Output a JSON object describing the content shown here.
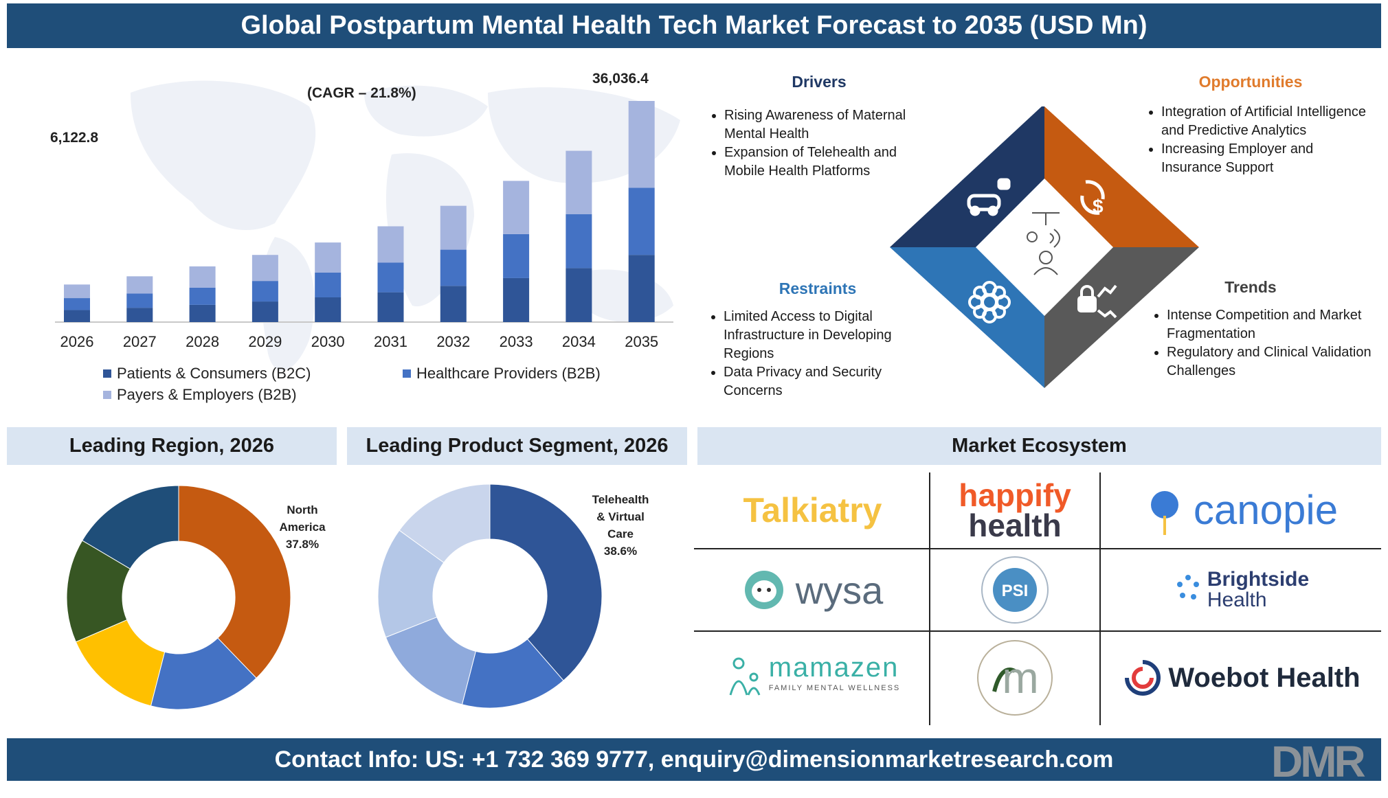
{
  "header": {
    "title": "Global Postpartum Mental Health Tech Market Forecast to 2035 (USD Mn)"
  },
  "footer": {
    "contact": "Contact Info: US: +1 732 369 9777, enquiry@dimensionmarketresearch.com",
    "logo_text": "DMR"
  },
  "chart_data": [
    {
      "type": "bar",
      "stacked": true,
      "categories": [
        "2026",
        "2027",
        "2028",
        "2029",
        "2030",
        "2031",
        "2032",
        "2033",
        "2034",
        "2035"
      ],
      "series": [
        {
          "name": "Patients & Consumers (B2C)",
          "color": "#2f5597",
          "values": [
            1955,
            2335,
            2810,
            3350,
            4030,
            4855,
            5900,
            7170,
            8800,
            10950
          ]
        },
        {
          "name": "Healthcare Providers (B2B)",
          "color": "#4472c4",
          "values": [
            1955,
            2335,
            2810,
            3350,
            4030,
            4855,
            5900,
            7170,
            8800,
            10950
          ]
        },
        {
          "name": "Payers & Employers (B2B)",
          "color": "#a5b4de",
          "values": [
            2213,
            2791,
            3458,
            4244,
            4910,
            5900,
            7150,
            8673,
            10315,
            14136
          ]
        }
      ],
      "annotations": {
        "first_total": "6,122.8",
        "last_total": "36,036.4",
        "cagr": "(CAGR – 21.8%)"
      },
      "grid": false,
      "legend_position": "bottom"
    },
    {
      "type": "pie",
      "variant": "donut",
      "title": "Leading Region, 2026",
      "slices": [
        {
          "label": "North America",
          "value": 37.8,
          "color": "#c55a11"
        },
        {
          "label": "",
          "value": 16.2,
          "color": "#4472c4"
        },
        {
          "label": "",
          "value": 14.5,
          "color": "#ffc000"
        },
        {
          "label": "",
          "value": 15.0,
          "color": "#375623"
        },
        {
          "label": "",
          "value": 16.5,
          "color": "#1f4e79"
        }
      ],
      "callout": {
        "line1": "North",
        "line2": "America",
        "value": "37.8%"
      }
    },
    {
      "type": "pie",
      "variant": "donut",
      "title": "Leading Product Segment, 2026",
      "slices": [
        {
          "label": "Telehealth & Virtual Care",
          "value": 38.6,
          "color": "#2f5597"
        },
        {
          "label": "",
          "value": 15.4,
          "color": "#4472c4"
        },
        {
          "label": "",
          "value": 15.0,
          "color": "#8faadc"
        },
        {
          "label": "",
          "value": 16.0,
          "color": "#b4c7e7"
        },
        {
          "label": "",
          "value": 15.0,
          "color": "#c9d5ec"
        }
      ],
      "callout": {
        "line1": "Telehealth",
        "line2": "& Virtual",
        "line3": "Care",
        "value": "38.6%"
      }
    }
  ],
  "dynamics": {
    "drivers": {
      "title": "Drivers",
      "color": "#1f3864",
      "items": [
        "Rising Awareness of Maternal Mental Health",
        "Expansion of Telehealth and Mobile Health Platforms"
      ]
    },
    "opportunities": {
      "title": "Opportunities",
      "color": "#c55a11",
      "items": [
        "Integration of Artificial Intelligence and Predictive Analytics",
        "Increasing Employer and Insurance Support"
      ]
    },
    "restraints": {
      "title": "Restraints",
      "color": "#2e75b6",
      "items": [
        "Limited Access to Digital Infrastructure in Developing Regions",
        "Data Privacy and Security Concerns"
      ]
    },
    "trends": {
      "title": "Trends",
      "color": "#404040",
      "items": [
        "Intense Competition and Market Fragmentation",
        "Regulatory and Clinical Validation Challenges"
      ]
    },
    "icons": [
      "car-robot-icon",
      "dollar-cycle-icon",
      "gear-flower-icon",
      "lock-trend-icon",
      "presenter-icon"
    ]
  },
  "sections": {
    "region": "Leading Region, 2026",
    "segment": "Leading Product Segment, 2026",
    "ecosystem": "Market Ecosystem"
  },
  "ecosystem": {
    "talkiatry": "Talkiatry",
    "happify_line1": "happify",
    "happify_line2": "health",
    "canopie": "canopie",
    "wysa": "wysa",
    "psi_mark": "PSI",
    "psi_ring": "POSTPARTUM SUPPORT INTERNATIONAL",
    "brightside_line1": "Brightside",
    "brightside_line2": "Health",
    "mamazen": "mamazen",
    "mamazen_tag": "FAMILY MENTAL WELLNESS",
    "mindful_mark": "m",
    "mindful_ring": "MINDFUL MAMA",
    "woebot": "Woebot Health"
  }
}
